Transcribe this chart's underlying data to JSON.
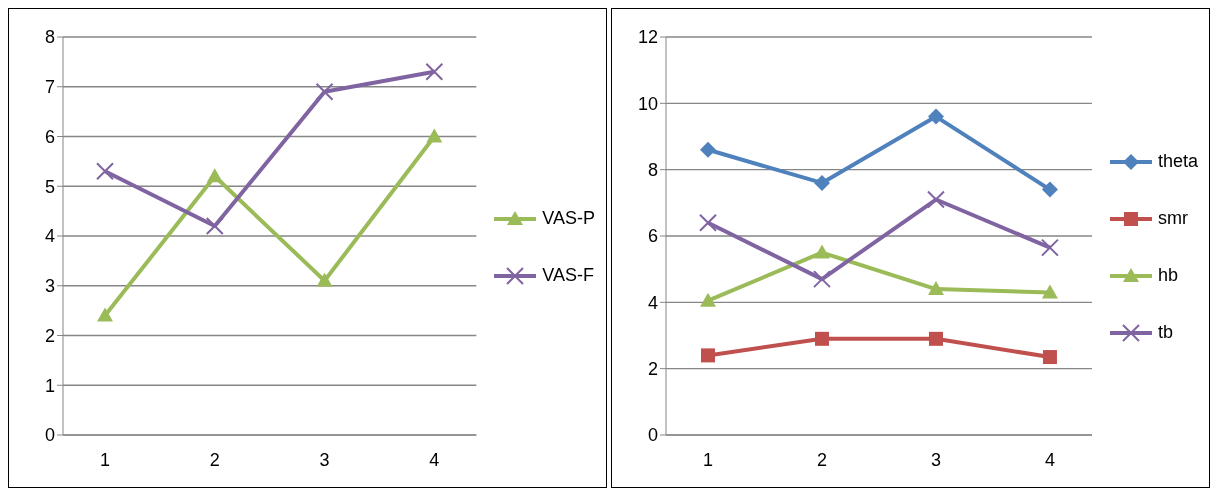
{
  "chart_data": [
    {
      "type": "line",
      "categories": [
        "1",
        "2",
        "3",
        "4"
      ],
      "ylim": [
        0,
        8
      ],
      "yticks": [
        0,
        1,
        2,
        3,
        4,
        5,
        6,
        7,
        8
      ],
      "grid": "y",
      "legend": "right",
      "series": [
        {
          "name": "VAS-P",
          "color": "#9bbb59",
          "marker": "triangle",
          "values": [
            2.4,
            5.2,
            3.1,
            6.0
          ]
        },
        {
          "name": "VAS-F",
          "color": "#8064a2",
          "marker": "cross",
          "values": [
            5.3,
            4.2,
            6.9,
            7.3
          ]
        }
      ]
    },
    {
      "type": "line",
      "categories": [
        "1",
        "2",
        "3",
        "4"
      ],
      "ylim": [
        0,
        12
      ],
      "yticks": [
        0,
        2,
        4,
        6,
        8,
        10,
        12
      ],
      "grid": "y",
      "legend": "right",
      "series": [
        {
          "name": "theta",
          "color": "#4f81bd",
          "marker": "diamond",
          "values": [
            8.6,
            7.6,
            9.6,
            7.4
          ]
        },
        {
          "name": "smr",
          "color": "#c0504d",
          "marker": "square",
          "values": [
            2.4,
            2.9,
            2.9,
            2.35
          ]
        },
        {
          "name": "hb",
          "color": "#9bbb59",
          "marker": "triangle",
          "values": [
            4.05,
            5.5,
            4.4,
            4.3
          ]
        },
        {
          "name": "tb",
          "color": "#8064a2",
          "marker": "cross",
          "values": [
            6.4,
            4.7,
            7.1,
            5.65
          ]
        }
      ]
    }
  ]
}
